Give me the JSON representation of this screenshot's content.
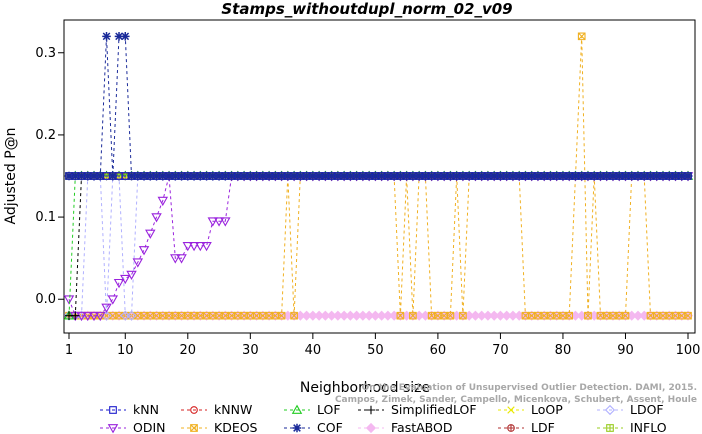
{
  "chart_data": {
    "type": "line",
    "title": "Stamps_withoutdupl_norm_02_v09",
    "xlabel": "Neighborhood size",
    "ylabel": "Adjusted P@n",
    "xlim": [
      1,
      100
    ],
    "ylim": [
      -0.035,
      0.335
    ],
    "xticks": [
      1,
      10,
      20,
      30,
      40,
      50,
      60,
      70,
      80,
      90,
      100
    ],
    "yticks": [
      0.0,
      0.1,
      0.2,
      0.3
    ],
    "ytick_labels": [
      "0.0",
      "0.1",
      "0.2",
      "0.3"
    ],
    "legend_position": "bottom",
    "citation": [
      "Campos, Zimek, Sander, Campello, Micenkova, Schubert, Assent, Houle",
      "On the Evaluation of Unsupervised Outlier Detection. DAMI, 2015."
    ],
    "series": [
      {
        "name": "kNN",
        "color": "#1a1acc",
        "marker": "square",
        "points": [
          [
            1,
            0.15
          ],
          [
            2,
            0.15
          ],
          [
            3,
            0.15
          ],
          [
            4,
            0.15
          ],
          [
            100,
            0.15
          ]
        ]
      },
      {
        "name": "kNNW",
        "color": "#d62020",
        "marker": "circle",
        "points": [
          [
            1,
            0.15
          ],
          [
            2,
            0.15
          ],
          [
            3,
            0.15
          ],
          [
            4,
            0.15
          ],
          [
            100,
            0.15
          ]
        ]
      },
      {
        "name": "LOF",
        "color": "#22cc22",
        "marker": "triangle-up",
        "points": [
          [
            1,
            -0.02
          ],
          [
            2,
            0.15
          ],
          [
            3,
            0.15
          ],
          [
            100,
            0.15
          ]
        ]
      },
      {
        "name": "SimplifiedLOF",
        "color": "#000000",
        "marker": "plus",
        "points": [
          [
            1,
            -0.02
          ],
          [
            2,
            -0.02
          ],
          [
            3,
            0.15
          ],
          [
            100,
            0.15
          ]
        ]
      },
      {
        "name": "LoOP",
        "color": "#e8e800",
        "marker": "x",
        "points": [
          [
            1,
            0.15
          ],
          [
            2,
            0.15
          ],
          [
            100,
            0.15
          ]
        ]
      },
      {
        "name": "LDOF",
        "color": "#b0b0ff",
        "marker": "diamond",
        "points": [
          [
            1,
            -0.02
          ],
          [
            2,
            -0.02
          ],
          [
            3,
            -0.02
          ],
          [
            4,
            0.15
          ],
          [
            5,
            0.15
          ],
          [
            6,
            0.15
          ],
          [
            7,
            -0.02
          ],
          [
            8,
            0.15
          ],
          [
            9,
            0.15
          ],
          [
            10,
            -0.02
          ],
          [
            11,
            -0.02
          ],
          [
            12,
            0.15
          ],
          [
            100,
            0.15
          ]
        ]
      },
      {
        "name": "ODIN",
        "color": "#9922dd",
        "marker": "triangle-down",
        "points": [
          [
            1,
            0.0
          ],
          [
            2,
            -0.02
          ],
          [
            3,
            -0.02
          ],
          [
            4,
            -0.02
          ],
          [
            5,
            -0.02
          ],
          [
            6,
            -0.02
          ],
          [
            7,
            -0.01
          ],
          [
            8,
            0.0
          ],
          [
            9,
            0.02
          ],
          [
            10,
            0.025
          ],
          [
            11,
            0.03
          ],
          [
            12,
            0.045
          ],
          [
            13,
            0.06
          ],
          [
            14,
            0.08
          ],
          [
            15,
            0.1
          ],
          [
            16,
            0.12
          ],
          [
            17,
            0.15
          ],
          [
            18,
            0.05
          ],
          [
            19,
            0.05
          ],
          [
            20,
            0.065
          ],
          [
            21,
            0.065
          ],
          [
            22,
            0.065
          ],
          [
            23,
            0.065
          ],
          [
            24,
            0.095
          ],
          [
            25,
            0.095
          ],
          [
            26,
            0.095
          ],
          [
            27,
            0.15
          ],
          [
            100,
            0.15
          ]
        ]
      },
      {
        "name": "KDEOS",
        "color": "#f0b020",
        "marker": "square-x",
        "points": [
          [
            1,
            -0.02
          ],
          [
            35,
            -0.02
          ],
          [
            36,
            0.15
          ],
          [
            37,
            -0.02
          ],
          [
            38,
            0.15
          ],
          [
            53,
            0.15
          ],
          [
            54,
            -0.02
          ],
          [
            55,
            0.15
          ],
          [
            56,
            -0.02
          ],
          [
            57,
            0.15
          ],
          [
            58,
            0.15
          ],
          [
            59,
            -0.02
          ],
          [
            62,
            -0.02
          ],
          [
            63,
            0.15
          ],
          [
            64,
            -0.02
          ],
          [
            65,
            0.15
          ],
          [
            73,
            0.15
          ],
          [
            74,
            -0.02
          ],
          [
            81,
            -0.02
          ],
          [
            82,
            0.15
          ],
          [
            83,
            0.32
          ],
          [
            84,
            -0.02
          ],
          [
            85,
            0.15
          ],
          [
            86,
            -0.02
          ],
          [
            90,
            -0.02
          ],
          [
            91,
            0.15
          ],
          [
            92,
            0.15
          ],
          [
            93,
            0.15
          ],
          [
            94,
            -0.02
          ],
          [
            100,
            -0.02
          ]
        ]
      },
      {
        "name": "COF",
        "color": "#1a2a99",
        "marker": "asterisk",
        "points": [
          [
            1,
            0.15
          ],
          [
            5,
            0.15
          ],
          [
            6,
            0.15
          ],
          [
            7,
            0.32
          ],
          [
            8,
            0.15
          ],
          [
            9,
            0.32
          ],
          [
            10,
            0.32
          ],
          [
            11,
            0.15
          ],
          [
            100,
            0.15
          ]
        ]
      },
      {
        "name": "FastABOD",
        "color": "#f4b8f0",
        "marker": "diamond-filled",
        "points": [
          [
            1,
            -0.02
          ],
          [
            100,
            -0.02
          ]
        ]
      },
      {
        "name": "LDF",
        "color": "#b03030",
        "marker": "circle-plus",
        "points": [
          [
            1,
            0.15
          ],
          [
            100,
            0.15
          ]
        ]
      },
      {
        "name": "INFLO",
        "color": "#99cc22",
        "marker": "square-cross",
        "points": [
          [
            1,
            0.15
          ],
          [
            100,
            0.15
          ]
        ]
      }
    ]
  }
}
